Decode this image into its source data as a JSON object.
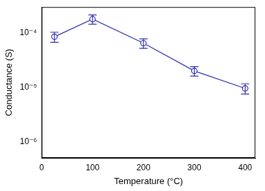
{
  "chart_data": {
    "type": "line",
    "x_label": "Temperature (°C)",
    "y_label": "Conductance (S)",
    "x": [
      25,
      100,
      200,
      300,
      400
    ],
    "values": [
      8.5e-05,
      0.00018,
      6.5e-05,
      2e-05,
      9.5e-06
    ],
    "errors": [
      1.8e-05,
      3.5e-05,
      1.3e-05,
      4e-06,
      2e-06
    ],
    "color": "#2b2bb0",
    "marker": "open_circle",
    "log": "y",
    "grid": false,
    "xlim": [
      0,
      420
    ],
    "xticks": [
      0,
      100,
      200,
      300,
      400
    ],
    "ylim": [
      5e-07,
      0.0003
    ],
    "yticks": [
      {
        "value": 1e-06,
        "label": "10⁻⁶"
      },
      {
        "value": 1e-05,
        "label": "10⁻⁵"
      },
      {
        "value": 0.0001,
        "label": "10⁻⁴"
      }
    ]
  }
}
